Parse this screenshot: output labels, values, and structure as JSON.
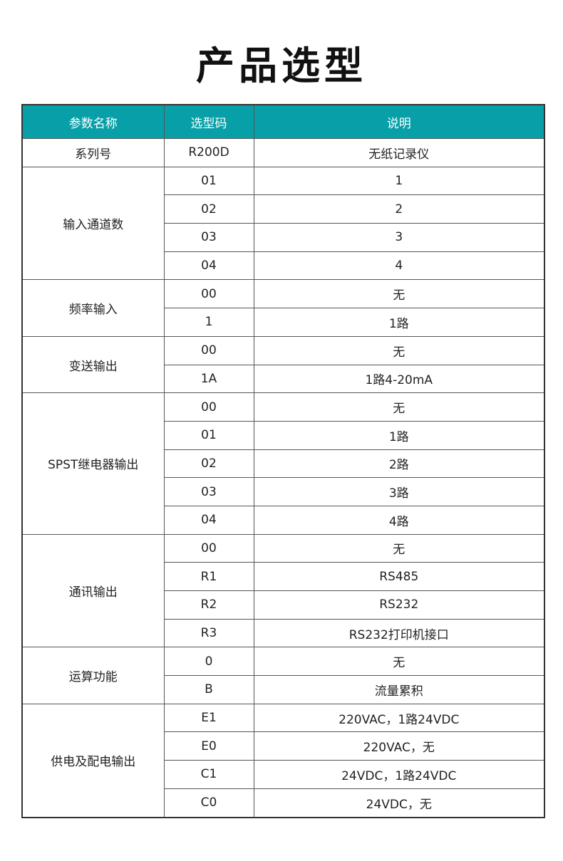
{
  "title": "产品选型",
  "colors": {
    "header_bg": "#08a0a8"
  },
  "table": {
    "headers": [
      "参数名称",
      "选型码",
      "说明"
    ],
    "groups": [
      {
        "param": "系列号",
        "rows": [
          [
            "R200D",
            "无纸记录仪"
          ]
        ]
      },
      {
        "param": "输入通道数",
        "rows": [
          [
            "01",
            "1"
          ],
          [
            "02",
            "2"
          ],
          [
            "03",
            "3"
          ],
          [
            "04",
            "4"
          ]
        ]
      },
      {
        "param": "频率输入",
        "rows": [
          [
            "00",
            "无"
          ],
          [
            "1",
            "1路"
          ]
        ]
      },
      {
        "param": "变送输出",
        "rows": [
          [
            "00",
            "无"
          ],
          [
            "1A",
            "1路4-20mA"
          ]
        ]
      },
      {
        "param": "SPST继电器输出",
        "rows": [
          [
            "00",
            "无"
          ],
          [
            "01",
            "1路"
          ],
          [
            "02",
            "2路"
          ],
          [
            "03",
            "3路"
          ],
          [
            "04",
            "4路"
          ]
        ]
      },
      {
        "param": "通讯输出",
        "rows": [
          [
            "00",
            "无"
          ],
          [
            "R1",
            "RS485"
          ],
          [
            "R2",
            "RS232"
          ],
          [
            "R3",
            "RS232打印机接口"
          ]
        ]
      },
      {
        "param": "运算功能",
        "rows": [
          [
            "0",
            "无"
          ],
          [
            "B",
            "流量累积"
          ]
        ]
      },
      {
        "param": "供电及配电输出",
        "rows": [
          [
            "E1",
            "220VAC，1路24VDC"
          ],
          [
            "E0",
            "220VAC，无"
          ],
          [
            "C1",
            "24VDC，1路24VDC"
          ],
          [
            "C0",
            "24VDC，无"
          ]
        ]
      }
    ]
  }
}
